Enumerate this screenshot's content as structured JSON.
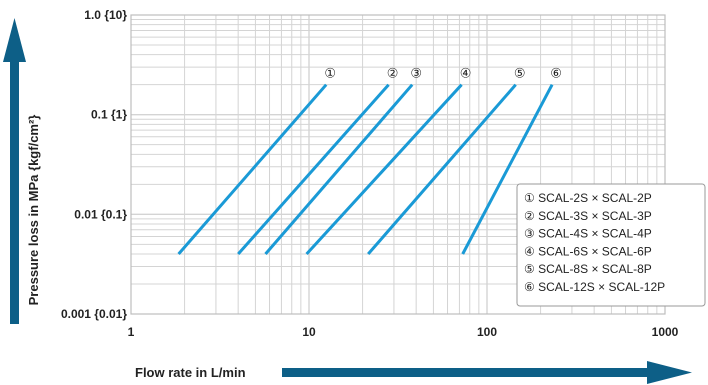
{
  "chart_data": {
    "type": "line",
    "x_scale": "log",
    "y_scale": "log",
    "xlim": [
      1,
      1000
    ],
    "ylim": [
      0.001,
      1.0
    ],
    "xlabel": "Flow rate in L/min",
    "ylabel": "Pressure loss in MPa {kgf/cm²}",
    "x_ticks": [
      {
        "value": 1,
        "label": "1"
      },
      {
        "value": 10,
        "label": "10"
      },
      {
        "value": 100,
        "label": "100"
      },
      {
        "value": 1000,
        "label": "1000"
      }
    ],
    "y_ticks": [
      {
        "value": 1.0,
        "label": "1.0 {10}"
      },
      {
        "value": 0.1,
        "label": "0.1 {1}"
      },
      {
        "value": 0.01,
        "label": "0.01 {0.1}"
      },
      {
        "value": 0.001,
        "label": "0.001 {0.01}"
      }
    ],
    "grid": true,
    "legend_position": "bottom-right",
    "series_color": "#1a9ad6",
    "grid_color": "#d4d4d4",
    "frame_color": "#bdbdbd",
    "arrow_color": "#0d5f87",
    "series": [
      {
        "name": "SCAL-2S × SCAL-2P",
        "marker": "①",
        "x": [
          1.85,
          12.5
        ],
        "y": [
          0.004,
          0.2
        ]
      },
      {
        "name": "SCAL-3S × SCAL-3P",
        "marker": "②",
        "x": [
          4.0,
          28.0
        ],
        "y": [
          0.004,
          0.2
        ]
      },
      {
        "name": "SCAL-4S × SCAL-4P",
        "marker": "③",
        "x": [
          5.7,
          38.0
        ],
        "y": [
          0.004,
          0.2
        ]
      },
      {
        "name": "SCAL-6S × SCAL-6P",
        "marker": "④",
        "x": [
          9.7,
          72.0
        ],
        "y": [
          0.004,
          0.2
        ]
      },
      {
        "name": "SCAL-8S × SCAL-8P",
        "marker": "⑤",
        "x": [
          21.5,
          145.0
        ],
        "y": [
          0.004,
          0.2
        ]
      },
      {
        "name": "SCAL-12S × SCAL-12P",
        "marker": "⑥",
        "x": [
          73.0,
          232.0
        ],
        "y": [
          0.004,
          0.2
        ]
      }
    ]
  }
}
